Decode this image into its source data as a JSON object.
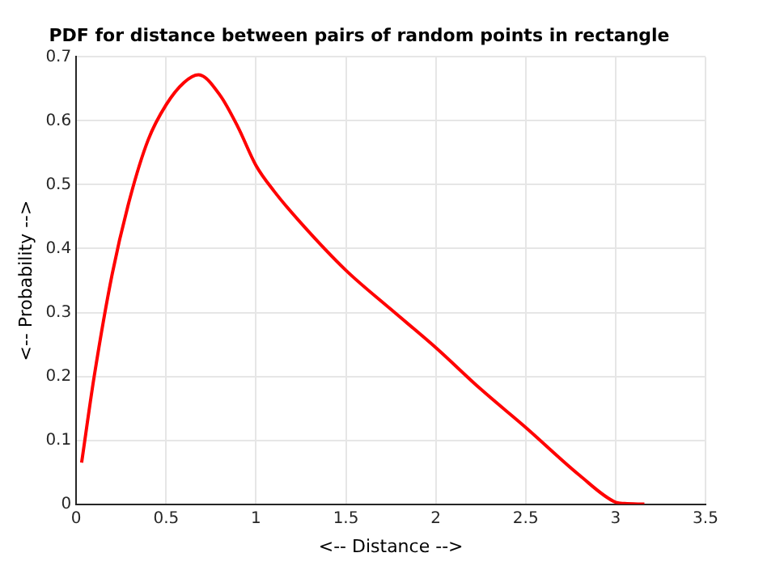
{
  "chart_data": {
    "type": "line",
    "title": "PDF for distance between pairs of random points in rectangle",
    "xlabel": "<-- Distance -->",
    "ylabel": "<-- Probability -->",
    "x": [
      0.03,
      0.1,
      0.2,
      0.3,
      0.4,
      0.5,
      0.6,
      0.68,
      0.8,
      0.9,
      1.0,
      1.1,
      1.25,
      1.5,
      1.75,
      2.0,
      2.25,
      2.5,
      2.8,
      3.0,
      3.05,
      3.16
    ],
    "series": [
      {
        "color": "#ff0000",
        "values": [
          0.065,
          0.2,
          0.36,
          0.48,
          0.57,
          0.625,
          0.66,
          0.672,
          0.64,
          0.59,
          0.53,
          0.49,
          0.44,
          0.366,
          0.305,
          0.245,
          0.18,
          0.12,
          0.045,
          0.003,
          0.001,
          0
        ]
      }
    ],
    "xlim": [
      0,
      3.5
    ],
    "xticks": [
      0,
      0.5,
      1,
      1.5,
      2,
      2.5,
      3,
      3.5
    ],
    "ylim": [
      0,
      0.7
    ],
    "yticks": [
      0,
      0.1,
      0.2,
      0.3,
      0.4,
      0.5,
      0.6,
      0.7
    ],
    "grid": true,
    "legend": false,
    "marker": "none",
    "line_style": "solid"
  }
}
